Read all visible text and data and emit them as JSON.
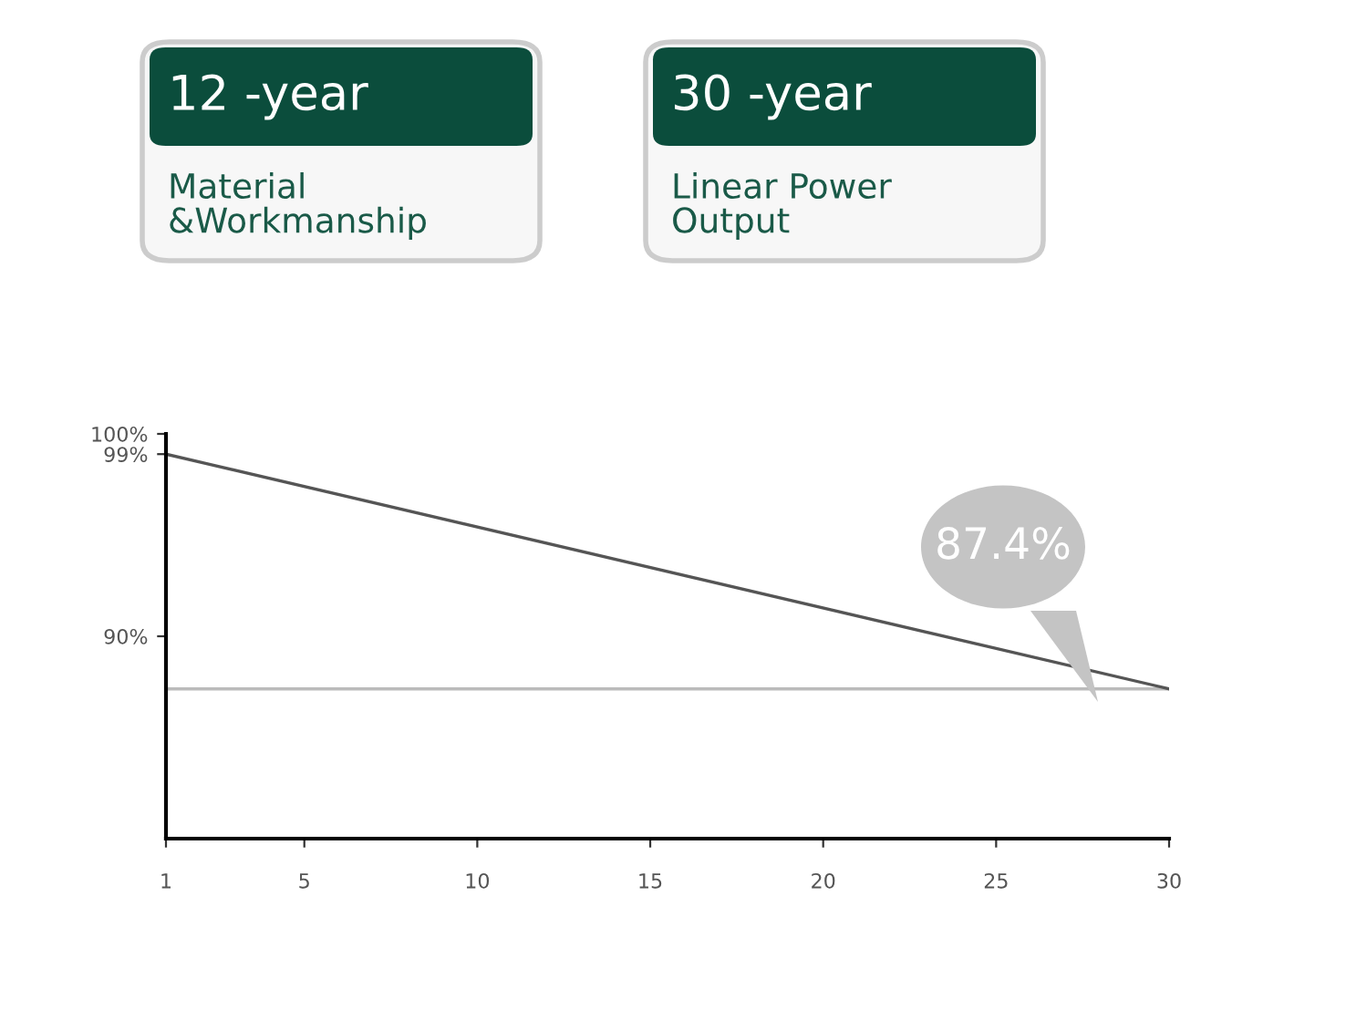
{
  "chart_data": {
    "type": "line",
    "x": [
      1,
      30
    ],
    "values": [
      99,
      87.4
    ],
    "color": "#555555",
    "xlim": [
      1,
      30
    ],
    "xticks": [
      1,
      5,
      10,
      15,
      20,
      25,
      30
    ],
    "ylim": [
      80,
      100
    ],
    "yticks": [
      {
        "value": 90,
        "label": "90%"
      },
      {
        "value": 99,
        "label": "99%"
      },
      {
        "value": 100,
        "label": "100%"
      }
    ],
    "grid": false,
    "marker": "none",
    "line_style": "solid",
    "ref_lines": [
      {
        "axis": "y",
        "value": 87.4,
        "color": "#bbbbbb"
      }
    ],
    "annotations": [
      "87.4%",
      "12 -year",
      "Material\n&Workmanship",
      "30 -year",
      "Linear Power\nOutput"
    ]
  }
}
